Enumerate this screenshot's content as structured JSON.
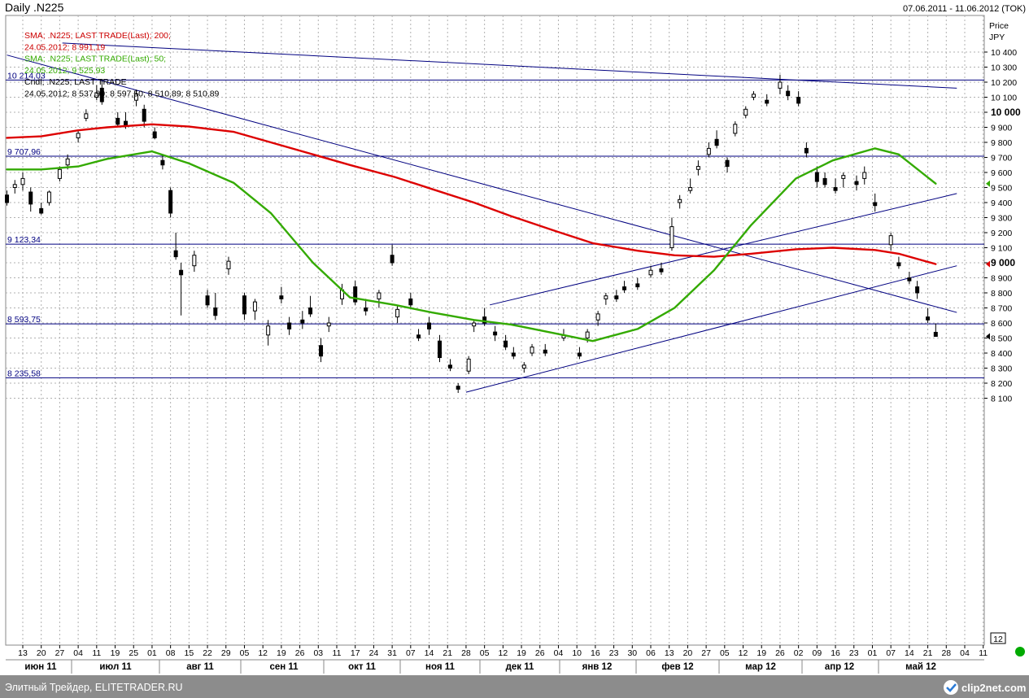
{
  "header": {
    "title": "Daily .N225",
    "date_range": "07.06.2011 - 11.06.2012 (TOK)"
  },
  "legend": [
    {
      "text": "SMA; .N225; LAST TRADE(Last);  200;",
      "color": "#cc0000"
    },
    {
      "text": "24.05.2012; 8 991,19",
      "color": "#cc0000"
    },
    {
      "text": "SMA; .N225; LAST TRADE(Last);  50;",
      "color": "#33aa00"
    },
    {
      "text": "24.05.2012; 9 525,93",
      "color": "#33aa00"
    },
    {
      "text": "Cndl; .N225; LAST TRADE",
      "color": "#000000"
    },
    {
      "text": "24.05.2012; 8 537,99; 8 597,50; 8 510,89; 8 510,89",
      "color": "#000000"
    }
  ],
  "axis": {
    "price_label": "Price",
    "currency_label": "JPY",
    "corner_label": "12",
    "y_ticks": [
      "10 400",
      "10 300",
      "10 200",
      "10 100",
      "10 000",
      "9 900",
      "9 800",
      "9 700",
      "9 600",
      "9 500",
      "9 400",
      "9 300",
      "9 200",
      "9 100",
      "9 000",
      "8 900",
      "8 800",
      "8 700",
      "8 600",
      "8 500",
      "8 400",
      "8 300",
      "8 200",
      "8 100"
    ],
    "y_bold": [
      "10 000",
      "9 000"
    ],
    "x_day_ticks": [
      "13",
      "20",
      "27",
      "04",
      "11",
      "19",
      "25",
      "01",
      "08",
      "15",
      "22",
      "29",
      "05",
      "12",
      "19",
      "26",
      "03",
      "11",
      "17",
      "24",
      "31",
      "07",
      "14",
      "21",
      "28",
      "05",
      "12",
      "19",
      "26",
      "04",
      "10",
      "16",
      "23",
      "30",
      "06",
      "13",
      "20",
      "27",
      "05",
      "12",
      "19",
      "26",
      "02",
      "09",
      "16",
      "23",
      "01",
      "07",
      "14",
      "21",
      "28",
      "04",
      "11"
    ],
    "x_month_ticks": [
      "июн 11",
      "июл 11",
      "авг 11",
      "сен 11",
      "окт 11",
      "ноя 11",
      "дек 11",
      "янв 12",
      "фев 12",
      "мар 12",
      "апр 12",
      "май 12"
    ]
  },
  "levels": [
    {
      "label": "10 214,03",
      "value": 10214.03
    },
    {
      "label": "9 707,96",
      "value": 9707.96
    },
    {
      "label": "9 123,34",
      "value": 9123.34
    },
    {
      "label": "8 593,75",
      "value": 8593.75
    },
    {
      "label": "8 235,58",
      "value": 8235.58
    }
  ],
  "footer": {
    "left_text": "Элитный Трейдер, ELITETRADER.RU",
    "brand": "clip2net.com"
  },
  "chart_data": {
    "type": "line",
    "title": "Daily .N225",
    "ylabel": "Price JPY",
    "ylim": [
      8050,
      10500
    ],
    "x_range": [
      "2011-06-07",
      "2012-06-11"
    ],
    "series": [
      {
        "name": "SMA; .N225; LAST TRADE(Last); 200",
        "color": "#dd0000",
        "points": [
          [
            "2011-06-07",
            9830
          ],
          [
            "2011-06-20",
            9840
          ],
          [
            "2011-07-04",
            9880
          ],
          [
            "2011-07-15",
            9900
          ],
          [
            "2011-08-01",
            9920
          ],
          [
            "2011-08-15",
            9905
          ],
          [
            "2011-09-01",
            9870
          ],
          [
            "2011-09-15",
            9800
          ],
          [
            "2011-10-01",
            9720
          ],
          [
            "2011-10-15",
            9650
          ],
          [
            "2011-11-01",
            9570
          ],
          [
            "2011-11-15",
            9490
          ],
          [
            "2011-12-01",
            9400
          ],
          [
            "2011-12-15",
            9310
          ],
          [
            "2012-01-01",
            9210
          ],
          [
            "2012-01-15",
            9130
          ],
          [
            "2012-02-01",
            9080
          ],
          [
            "2012-02-15",
            9050
          ],
          [
            "2012-03-01",
            9040
          ],
          [
            "2012-03-15",
            9060
          ],
          [
            "2012-04-01",
            9090
          ],
          [
            "2012-04-15",
            9100
          ],
          [
            "2012-05-01",
            9085
          ],
          [
            "2012-05-10",
            9060
          ],
          [
            "2012-05-24",
            8991.19
          ]
        ]
      },
      {
        "name": "SMA; .N225; LAST TRADE(Last); 50",
        "color": "#33aa00",
        "points": [
          [
            "2011-06-07",
            9620
          ],
          [
            "2011-06-20",
            9620
          ],
          [
            "2011-07-04",
            9640
          ],
          [
            "2011-07-15",
            9690
          ],
          [
            "2011-08-01",
            9740
          ],
          [
            "2011-08-15",
            9660
          ],
          [
            "2011-09-01",
            9530
          ],
          [
            "2011-09-15",
            9330
          ],
          [
            "2011-10-01",
            9000
          ],
          [
            "2011-10-15",
            8770
          ],
          [
            "2011-11-01",
            8720
          ],
          [
            "2011-11-15",
            8670
          ],
          [
            "2011-12-01",
            8620
          ],
          [
            "2011-12-15",
            8590
          ],
          [
            "2012-01-01",
            8530
          ],
          [
            "2012-01-15",
            8480
          ],
          [
            "2012-02-01",
            8560
          ],
          [
            "2012-02-15",
            8700
          ],
          [
            "2012-03-01",
            8950
          ],
          [
            "2012-03-15",
            9250
          ],
          [
            "2012-04-01",
            9560
          ],
          [
            "2012-04-15",
            9680
          ],
          [
            "2012-05-01",
            9760
          ],
          [
            "2012-05-10",
            9720
          ],
          [
            "2012-05-24",
            9525.93
          ]
        ]
      }
    ],
    "trend_lines": [
      {
        "from": [
          "2011-06-28",
          10460
        ],
        "to": [
          "2012-06-01",
          10160
        ]
      },
      {
        "from": [
          "2011-06-07",
          10380
        ],
        "to": [
          "2012-06-01",
          8670
        ]
      },
      {
        "from": [
          "2011-11-28",
          8140
        ],
        "to": [
          "2012-06-01",
          8980
        ]
      },
      {
        "from": [
          "2011-12-07",
          8720
        ],
        "to": [
          "2012-06-01",
          9460
        ]
      }
    ],
    "candles": [
      [
        "2011-06-07",
        9450,
        9480,
        9380,
        9400
      ],
      [
        "2011-06-10",
        9500,
        9550,
        9460,
        9520
      ],
      [
        "2011-06-13",
        9520,
        9600,
        9480,
        9560
      ],
      [
        "2011-06-16",
        9470,
        9500,
        9340,
        9390
      ],
      [
        "2011-06-20",
        9360,
        9400,
        9320,
        9330
      ],
      [
        "2011-06-23",
        9400,
        9480,
        9380,
        9470
      ],
      [
        "2011-06-27",
        9560,
        9640,
        9540,
        9620
      ],
      [
        "2011-06-30",
        9650,
        9720,
        9620,
        9690
      ],
      [
        "2011-07-04",
        9830,
        9880,
        9800,
        9860
      ],
      [
        "2011-07-07",
        9960,
        10020,
        9940,
        9990
      ],
      [
        "2011-07-11",
        10100,
        10180,
        10080,
        10130
      ],
      [
        "2011-07-13",
        10160,
        10220,
        10050,
        10070
      ],
      [
        "2011-07-19",
        9960,
        10000,
        9900,
        9920
      ],
      [
        "2011-07-22",
        9940,
        10000,
        9890,
        9910
      ],
      [
        "2011-07-26",
        10080,
        10150,
        10040,
        10120
      ],
      [
        "2011-07-29",
        10020,
        10050,
        9900,
        9940
      ],
      [
        "2011-08-02",
        9870,
        9900,
        9820,
        9830
      ],
      [
        "2011-08-05",
        9680,
        9710,
        9620,
        9650
      ],
      [
        "2011-08-08",
        9480,
        9500,
        9300,
        9330
      ],
      [
        "2011-08-10",
        9080,
        9200,
        9020,
        9040
      ],
      [
        "2011-08-12",
        8950,
        9000,
        8650,
        8920
      ],
      [
        "2011-08-17",
        8980,
        9080,
        8940,
        9050
      ],
      [
        "2011-08-22",
        8780,
        8820,
        8700,
        8720
      ],
      [
        "2011-08-25",
        8700,
        8800,
        8620,
        8650
      ],
      [
        "2011-08-30",
        8960,
        9040,
        8920,
        9010
      ],
      [
        "2011-09-05",
        8780,
        8800,
        8620,
        8660
      ],
      [
        "2011-09-09",
        8680,
        8760,
        8620,
        8740
      ],
      [
        "2011-09-14",
        8520,
        8620,
        8450,
        8580
      ],
      [
        "2011-09-19",
        8780,
        8840,
        8730,
        8760
      ],
      [
        "2011-09-22",
        8600,
        8640,
        8520,
        8560
      ],
      [
        "2011-09-27",
        8620,
        8680,
        8560,
        8600
      ],
      [
        "2011-09-30",
        8700,
        8780,
        8640,
        8660
      ],
      [
        "2011-10-04",
        8450,
        8500,
        8340,
        8380
      ],
      [
        "2011-10-07",
        8580,
        8640,
        8540,
        8600
      ],
      [
        "2011-10-12",
        8760,
        8860,
        8720,
        8820
      ],
      [
        "2011-10-17",
        8840,
        8880,
        8720,
        8740
      ],
      [
        "2011-10-21",
        8700,
        8760,
        8650,
        8680
      ],
      [
        "2011-10-26",
        8760,
        8820,
        8700,
        8800
      ],
      [
        "2011-10-31",
        9050,
        9120,
        8980,
        9000
      ],
      [
        "2011-11-02",
        8640,
        8720,
        8600,
        8690
      ],
      [
        "2011-11-07",
        8760,
        8800,
        8700,
        8720
      ],
      [
        "2011-11-10",
        8520,
        8560,
        8480,
        8500
      ],
      [
        "2011-11-14",
        8600,
        8640,
        8520,
        8560
      ],
      [
        "2011-11-18",
        8480,
        8520,
        8340,
        8370
      ],
      [
        "2011-11-22",
        8320,
        8360,
        8280,
        8300
      ],
      [
        "2011-11-25",
        8180,
        8200,
        8135,
        8160
      ],
      [
        "2011-11-29",
        8280,
        8380,
        8260,
        8360
      ],
      [
        "2011-12-01",
        8580,
        8620,
        8540,
        8600
      ],
      [
        "2011-12-05",
        8640,
        8700,
        8580,
        8600
      ],
      [
        "2011-12-09",
        8540,
        8580,
        8480,
        8520
      ],
      [
        "2011-12-13",
        8480,
        8520,
        8420,
        8440
      ],
      [
        "2011-12-16",
        8400,
        8440,
        8360,
        8380
      ],
      [
        "2011-12-20",
        8300,
        8340,
        8270,
        8320
      ],
      [
        "2011-12-23",
        8400,
        8460,
        8380,
        8440
      ],
      [
        "2011-12-28",
        8420,
        8460,
        8380,
        8400
      ],
      [
        "2012-01-04",
        8500,
        8560,
        8480,
        8520
      ],
      [
        "2012-01-10",
        8400,
        8440,
        8360,
        8380
      ],
      [
        "2012-01-13",
        8500,
        8560,
        8470,
        8540
      ],
      [
        "2012-01-17",
        8620,
        8680,
        8580,
        8660
      ],
      [
        "2012-01-20",
        8760,
        8800,
        8720,
        8780
      ],
      [
        "2012-01-24",
        8780,
        8820,
        8740,
        8760
      ],
      [
        "2012-01-27",
        8840,
        8880,
        8800,
        8820
      ],
      [
        "2012-02-01",
        8860,
        8900,
        8820,
        8840
      ],
      [
        "2012-02-06",
        8920,
        8980,
        8900,
        8950
      ],
      [
        "2012-02-10",
        8960,
        9000,
        8920,
        8940
      ],
      [
        "2012-02-14",
        9100,
        9300,
        9080,
        9240
      ],
      [
        "2012-02-17",
        9400,
        9450,
        9360,
        9420
      ],
      [
        "2012-02-21",
        9480,
        9560,
        9460,
        9500
      ],
      [
        "2012-02-24",
        9620,
        9680,
        9580,
        9640
      ],
      [
        "2012-02-28",
        9720,
        9800,
        9700,
        9760
      ],
      [
        "2012-03-02",
        9820,
        9880,
        9760,
        9780
      ],
      [
        "2012-03-06",
        9680,
        9700,
        9600,
        9640
      ],
      [
        "2012-03-09",
        9860,
        9940,
        9840,
        9920
      ],
      [
        "2012-03-13",
        9980,
        10040,
        9960,
        10020
      ],
      [
        "2012-03-16",
        10100,
        10140,
        10080,
        10120
      ],
      [
        "2012-03-21",
        10080,
        10120,
        10040,
        10060
      ],
      [
        "2012-03-26",
        10160,
        10250,
        10120,
        10200
      ],
      [
        "2012-03-29",
        10140,
        10180,
        10080,
        10110
      ],
      [
        "2012-04-02",
        10100,
        10140,
        10040,
        10060
      ],
      [
        "2012-04-05",
        9760,
        9800,
        9700,
        9730
      ],
      [
        "2012-04-09",
        9600,
        9640,
        9500,
        9540
      ],
      [
        "2012-04-12",
        9560,
        9600,
        9500,
        9520
      ],
      [
        "2012-04-16",
        9500,
        9560,
        9460,
        9480
      ],
      [
        "2012-04-19",
        9560,
        9600,
        9500,
        9580
      ],
      [
        "2012-04-24",
        9540,
        9580,
        9480,
        9520
      ],
      [
        "2012-04-27",
        9560,
        9640,
        9520,
        9600
      ],
      [
        "2012-05-01",
        9400,
        9460,
        9340,
        9380
      ],
      [
        "2012-05-07",
        9120,
        9200,
        9080,
        9180
      ],
      [
        "2012-05-10",
        9000,
        9040,
        8960,
        8980
      ],
      [
        "2012-05-14",
        8900,
        8940,
        8860,
        8880
      ],
      [
        "2012-05-17",
        8840,
        8880,
        8760,
        8800
      ],
      [
        "2012-05-21",
        8640,
        8700,
        8600,
        8620
      ],
      [
        "2012-05-24",
        8537.99,
        8597.5,
        8510.89,
        8510.89
      ]
    ]
  }
}
